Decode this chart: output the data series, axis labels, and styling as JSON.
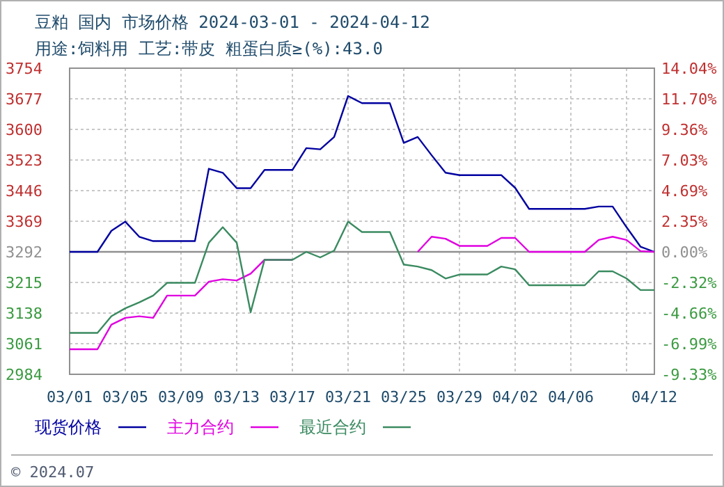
{
  "chart_data": {
    "type": "line",
    "title": "豆粕 国内 市场价格 2024-03-01 - 2024-04-12",
    "subtitle": "用途:饲料用 工艺:带皮 粗蛋白质≥(%):43.0",
    "annotations": [
      "© 2024.07"
    ],
    "x": [
      "--03-01",
      "--03-02",
      "--03-03",
      "--03-04",
      "--03-05",
      "--03-06",
      "--03-07",
      "--03-08",
      "--03-09",
      "--03-10",
      "--03-11",
      "--03-12",
      "--03-13",
      "--03-14",
      "--03-15",
      "--03-16",
      "--03-17",
      "--03-18",
      "--03-19",
      "--03-20",
      "--03-21",
      "--03-22",
      "--03-23",
      "--03-24",
      "--03-25",
      "--03-26",
      "--03-27",
      "--03-28",
      "--03-29",
      "--03-30",
      "--03-31",
      "--04-01",
      "--04-02",
      "--04-03",
      "--04-04",
      "--04-05",
      "--04-06",
      "--04-07",
      "--04-08",
      "--04-09",
      "--04-10",
      "--04-11",
      "--04-12"
    ],
    "series": [
      {
        "name": "现货价格",
        "color": "#0000a0",
        "values": [
          3292,
          3292,
          3292,
          3345,
          3368,
          3330,
          3319,
          3319,
          3319,
          3319,
          3501,
          3491,
          3452,
          3452,
          3498,
          3498,
          3498,
          3553,
          3550,
          3581,
          3684,
          3666,
          3666,
          3666,
          3566,
          3581,
          3535,
          3491,
          3485,
          3485,
          3485,
          3485,
          3453,
          3400,
          3400,
          3400,
          3400,
          3400,
          3406,
          3406,
          3354,
          3305,
          3292
        ]
      },
      {
        "name": "主力合约",
        "color": "#e000e0",
        "values": [
          3047,
          3047,
          3047,
          3109,
          3126,
          3130,
          3126,
          3182,
          3182,
          3182,
          3217,
          3223,
          3220,
          3237,
          3272,
          3272,
          3272,
          null,
          null,
          null,
          null,
          null,
          null,
          null,
          null,
          3292,
          3330,
          3325,
          3307,
          3307,
          3307,
          3327,
          3327,
          3292,
          3292,
          3292,
          3292,
          3292,
          3322,
          3330,
          3322,
          3294,
          3292
        ]
      },
      {
        "name": "最近合约",
        "color": "#3a8a60",
        "values": [
          3088,
          3088,
          3088,
          3130,
          3150,
          3165,
          3182,
          3214,
          3214,
          3214,
          3315,
          3354,
          3315,
          3140,
          3272,
          3272,
          3272,
          3292,
          3278,
          3295,
          3368,
          3342,
          3342,
          3342,
          3260,
          3255,
          3246,
          3225,
          3235,
          3235,
          3235,
          3255,
          3248,
          3208,
          3208,
          3208,
          3208,
          3208,
          3243,
          3243,
          3225,
          3196,
          3196
        ]
      }
    ],
    "xlim": [
      "--03-01",
      "--04-12"
    ],
    "xticks": [
      {
        "value": "--03-01",
        "label": "03/01"
      },
      {
        "value": "--03-05",
        "label": "03/05"
      },
      {
        "value": "--03-09",
        "label": "03/09"
      },
      {
        "value": "--03-13",
        "label": "03/13"
      },
      {
        "value": "--03-17",
        "label": "03/17"
      },
      {
        "value": "--03-21",
        "label": "03/21"
      },
      {
        "value": "--03-25",
        "label": "03/25"
      },
      {
        "value": "--03-29",
        "label": "03/29"
      },
      {
        "value": "--04-02",
        "label": "04/02"
      },
      {
        "value": "--04-06",
        "label": "04/06"
      },
      {
        "value": "--04-10",
        "label": null
      },
      {
        "value": "--04-12",
        "label": "04/12"
      }
    ],
    "ylim": [
      2984,
      3754
    ],
    "yticks": [
      2984,
      3061,
      3138,
      3215,
      3292,
      3369,
      3446,
      3523,
      3600,
      3677,
      3754
    ],
    "y2lim": [
      -9.33,
      14.04
    ],
    "y2ticks": [
      {
        "value": -9.33,
        "label": "-9.33%"
      },
      {
        "value": -6.99,
        "label": "-6.99%"
      },
      {
        "value": -4.66,
        "label": "-4.66%"
      },
      {
        "value": -2.32,
        "label": "-2.32%"
      },
      {
        "value": 0,
        "label": "0.00%"
      },
      {
        "value": 2.35,
        "label": "2.35%"
      },
      {
        "value": 4.69,
        "label": "4.69%"
      },
      {
        "value": 7.03,
        "label": "7.03%"
      },
      {
        "value": 9.36,
        "label": "9.36%"
      },
      {
        "value": 11.7,
        "label": "11.70%"
      },
      {
        "value": 14.04,
        "label": "14.04%"
      }
    ],
    "ref_lines": [
      {
        "axis": "y",
        "value": 3292,
        "color": "#909090"
      }
    ],
    "grid": true,
    "legend": "bottom",
    "marker": "none",
    "line_style": "solid"
  }
}
